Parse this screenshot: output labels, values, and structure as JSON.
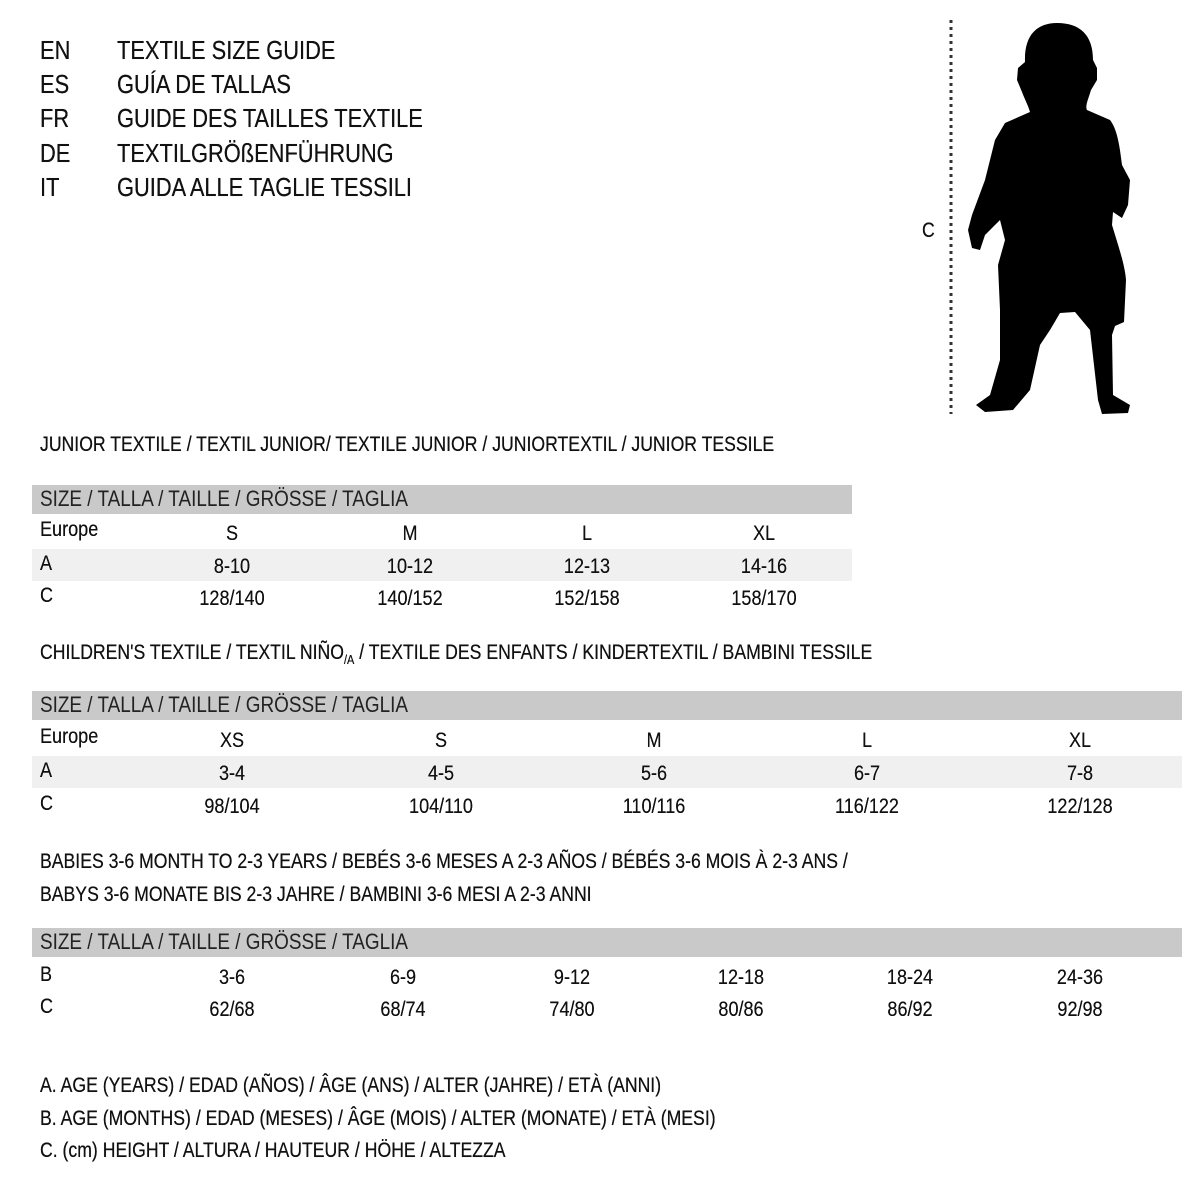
{
  "languages": [
    {
      "code": "EN",
      "title": "TEXTILE SIZE GUIDE"
    },
    {
      "code": "ES",
      "title": "GUÍA DE TALLAS"
    },
    {
      "code": "FR",
      "title": "GUIDE DES TAILLES TEXTILE"
    },
    {
      "code": "DE",
      "title": "TEXTILGRÖßENFÜHRUNG"
    },
    {
      "code": "IT",
      "title": "GUIDA ALLE TAGLIE TESSILI"
    }
  ],
  "figure": {
    "measure_label": "C",
    "icon": "child-silhouette-icon"
  },
  "header_band_label": "SIZE / TALLA / TAILLE / GRÖSSE / TAGLIA",
  "colors": {
    "header_band": "#c9c9c9",
    "alt_row": "#f0f0f0"
  },
  "junior": {
    "title": "JUNIOR TEXTILE / TEXTIL JUNIOR/ TEXTILE JUNIOR / JUNIORTEXTIL / JUNIOR TESSILE",
    "rows": [
      {
        "label": "Europe",
        "values": [
          "S",
          "M",
          "L",
          "XL"
        ]
      },
      {
        "label": "A",
        "values": [
          "8-10",
          "10-12",
          "12-13",
          "14-16"
        ]
      },
      {
        "label": "C",
        "values": [
          "128/140",
          "140/152",
          "152/158",
          "158/170"
        ]
      }
    ]
  },
  "children": {
    "title_a": "CHILDREN'S TEXTILE / TEXTIL NIÑO",
    "title_sub": "/A",
    "title_b": " / TEXTILE DES ENFANTS / KINDERTEXTIL / BAMBINI TESSILE",
    "rows": [
      {
        "label": "Europe",
        "values": [
          "XS",
          "S",
          "M",
          "L",
          "XL"
        ]
      },
      {
        "label": "A",
        "values": [
          "3-4",
          "4-5",
          "5-6",
          "6-7",
          "7-8"
        ]
      },
      {
        "label": "C",
        "values": [
          "98/104",
          "104/110",
          "110/116",
          "116/122",
          "122/128"
        ]
      }
    ]
  },
  "babies": {
    "title_line1": "BABIES 3-6 MONTH TO 2-3 YEARS / BEBÉS 3-6 MESES A 2-3 AÑOS / BÉBÉS 3-6 MOIS À 2-3 ANS /",
    "title_line2": "BABYS 3-6 MONATE BIS 2-3 JAHRE / BAMBINI 3-6 MESI A 2-3 ANNI",
    "rows": [
      {
        "label": "B",
        "values": [
          "3-6",
          "6-9",
          "9-12",
          "12-18",
          "18-24",
          "24-36"
        ]
      },
      {
        "label": "C",
        "values": [
          "62/68",
          "68/74",
          "74/80",
          "80/86",
          "86/92",
          "92/98"
        ]
      }
    ]
  },
  "legend": [
    "A. AGE (YEARS) / EDAD (AÑOS) / ÂGE (ANS) / ALTER (JAHRE) / ETÀ (ANNI)",
    "B. AGE (MONTHS) / EDAD (MESES) / ÂGE (MOIS) / ALTER (MONATE) / ETÀ (MESI)",
    "C. (cm) HEIGHT / ALTURA / HAUTEUR / HÖHE / ALTEZZA"
  ]
}
